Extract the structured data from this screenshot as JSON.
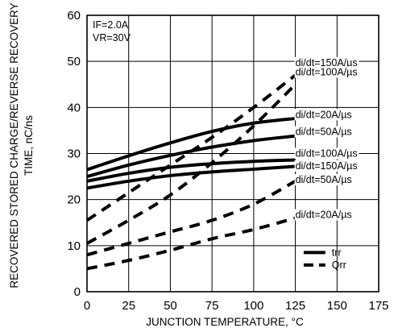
{
  "chart_data": {
    "type": "line",
    "title": "",
    "xlabel": "JUNCTION TEMPERATURE, °C",
    "ylabel_line1": "RECOVERED STORED CHARGE/REVERSE RECOVERY",
    "ylabel_line2": "TIME, nC/ns",
    "xlim": [
      0,
      175
    ],
    "ylim": [
      0,
      60
    ],
    "x_ticks": [
      0,
      25,
      50,
      75,
      100,
      125,
      150,
      175
    ],
    "y_ticks": [
      0,
      10,
      20,
      30,
      40,
      50,
      60
    ],
    "grid": true,
    "conditions": [
      "IF=2.0A",
      "VR=30V"
    ],
    "legend": {
      "position": "bottom-right",
      "entries": [
        {
          "label": "trr",
          "style": "solid"
        },
        {
          "label": "Qrr",
          "style": "dashed"
        }
      ]
    },
    "series": [
      {
        "label": "di/dt=20A/µs",
        "kind": "trr",
        "style": "solid",
        "x": [
          0,
          25,
          50,
          75,
          100,
          125
        ],
        "y": [
          26.5,
          29.5,
          32.3,
          34.8,
          36.6,
          37.6
        ]
      },
      {
        "label": "di/dt=50A/µs",
        "kind": "trr",
        "style": "solid",
        "x": [
          0,
          25,
          50,
          75,
          100,
          125
        ],
        "y": [
          25,
          27.5,
          29.6,
          31.4,
          32.8,
          33.8
        ]
      },
      {
        "label": "di/dt=100A/µs",
        "kind": "trr",
        "style": "solid",
        "x": [
          0,
          25,
          50,
          75,
          100,
          125
        ],
        "y": [
          24,
          25.7,
          27,
          27.8,
          28.3,
          28.6
        ]
      },
      {
        "label": "di/dt=150A/µs",
        "kind": "trr",
        "style": "solid",
        "x": [
          0,
          25,
          50,
          75,
          100,
          125
        ],
        "y": [
          22.5,
          24,
          25.2,
          26,
          26.6,
          27.2
        ]
      },
      {
        "label": "di/dt=150A/µs",
        "kind": "Qrr",
        "style": "dashed",
        "x": [
          0,
          25,
          50,
          75,
          100,
          125
        ],
        "y": [
          15.5,
          21.5,
          27.5,
          33.5,
          40,
          47
        ]
      },
      {
        "label": "di/dt=100A/µs",
        "kind": "Qrr",
        "style": "dashed",
        "x": [
          0,
          25,
          50,
          75,
          100,
          125
        ],
        "y": [
          10.5,
          15.5,
          21,
          28,
          36,
          45
        ]
      },
      {
        "label": "di/dt=50A/µs",
        "kind": "Qrr",
        "style": "dashed",
        "x": [
          0,
          25,
          50,
          75,
          100,
          125
        ],
        "y": [
          8,
          10.5,
          13,
          15.5,
          19,
          24
        ]
      },
      {
        "label": "di/dt=20A/µs",
        "kind": "Qrr",
        "style": "dashed",
        "x": [
          0,
          25,
          50,
          75,
          100,
          125
        ],
        "y": [
          5,
          6.8,
          9,
          11.5,
          13.5,
          16
        ]
      }
    ]
  }
}
